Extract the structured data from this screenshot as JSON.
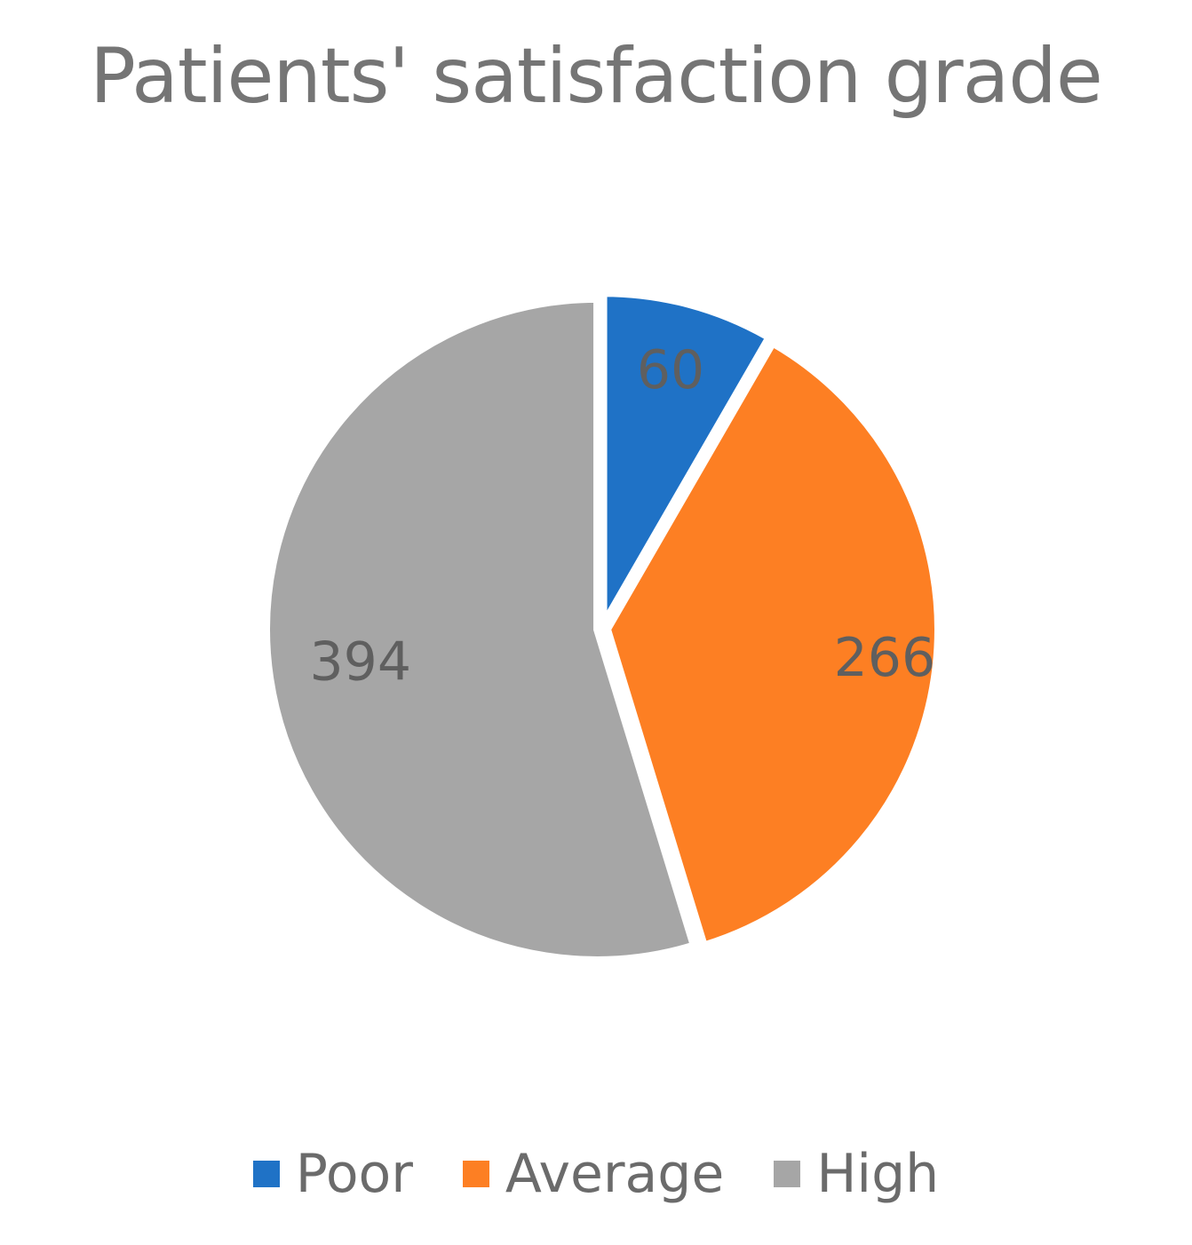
{
  "chart_data": {
    "type": "pie",
    "title": "Patients' satisfaction grade",
    "categories": [
      "Poor",
      "Average",
      "High"
    ],
    "values": [
      60,
      266,
      394
    ],
    "colors": [
      "#1f72c6",
      "#fd7f23",
      "#a6a6a6"
    ],
    "data_labels": [
      "60",
      "266",
      "394"
    ],
    "start_angle": "12 o'clock, clockwise",
    "exploded": true,
    "legend_position": "bottom"
  }
}
